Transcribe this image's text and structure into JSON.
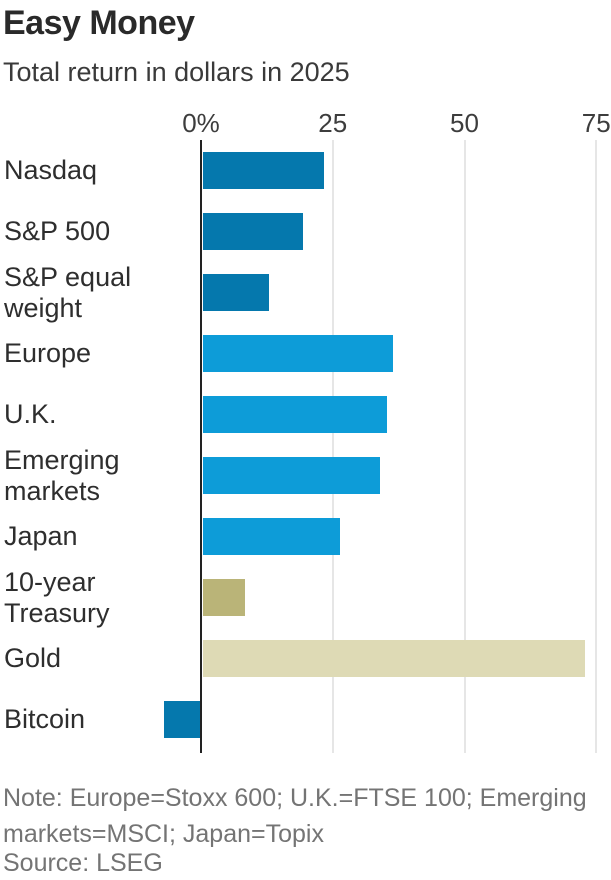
{
  "header": {
    "title": "Easy Money",
    "subtitle": "Total return in dollars in 2025"
  },
  "chart_data": {
    "type": "bar",
    "orientation": "horizontal",
    "title": "Easy Money",
    "subtitle": "Total return in dollars in 2025",
    "unit": "%",
    "xlim": [
      -10,
      78
    ],
    "grid": "vertical-light",
    "x_ticks": [
      {
        "label": "0%",
        "value": 0
      },
      {
        "label": "25",
        "value": 25
      },
      {
        "label": "50",
        "value": 50
      },
      {
        "label": "75",
        "value": 75
      }
    ],
    "colors": {
      "dark_blue": "#0578ad",
      "light_blue": "#0d9cd8",
      "olive": "#bab478",
      "beige": "#dedab5",
      "axis": "#222222",
      "gridline": "#e6e6e6"
    },
    "rows": [
      {
        "label_lines": [
          "Nasdaq"
        ],
        "value": 23,
        "color": "dark_blue"
      },
      {
        "label_lines": [
          "S&P 500"
        ],
        "value": 19,
        "color": "dark_blue"
      },
      {
        "label_lines": [
          "S&P equal",
          "weight"
        ],
        "value": 12.5,
        "color": "dark_blue"
      },
      {
        "label_lines": [
          "Europe"
        ],
        "value": 36,
        "color": "light_blue"
      },
      {
        "label_lines": [
          "U.K."
        ],
        "value": 35,
        "color": "light_blue"
      },
      {
        "label_lines": [
          "Emerging",
          "markets"
        ],
        "value": 33.5,
        "color": "light_blue"
      },
      {
        "label_lines": [
          "Japan"
        ],
        "value": 26,
        "color": "light_blue"
      },
      {
        "label_lines": [
          "10-year",
          "Treasury"
        ],
        "value": 8,
        "color": "olive"
      },
      {
        "label_lines": [
          "Gold"
        ],
        "value": 72.5,
        "color": "beige"
      },
      {
        "label_lines": [
          "Bitcoin"
        ],
        "value": -7,
        "color": "dark_blue"
      }
    ]
  },
  "footer": {
    "note": "Note: Europe=Stoxx 600; U.K.=FTSE 100; Emerging markets=MSCI; Japan=Topix",
    "source": "Source: LSEG"
  }
}
